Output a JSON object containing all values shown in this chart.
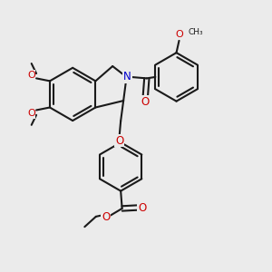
{
  "bg_color": "#ebebeb",
  "bond_color": "#1a1a1a",
  "N_color": "#0000cc",
  "O_color": "#cc0000",
  "lw": 1.5,
  "dbo": 0.013,
  "figsize": [
    3.0,
    3.0
  ],
  "dpi": 100,
  "xlim": [
    0.0,
    1.0
  ],
  "ylim": [
    0.0,
    1.0
  ]
}
